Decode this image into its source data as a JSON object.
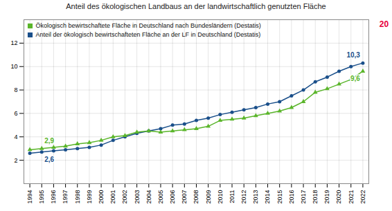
{
  "chart_data": {
    "type": "line",
    "title": "Anteil des ökologischen Landbaus an der landwirtschaftlich genutzten Fläche",
    "x": [
      1994,
      1995,
      1996,
      1997,
      1998,
      1999,
      2000,
      2001,
      2002,
      2003,
      2004,
      2005,
      2006,
      2007,
      2008,
      2009,
      2010,
      2011,
      2012,
      2013,
      2014,
      2015,
      2016,
      2017,
      2018,
      2019,
      2020,
      2021,
      2022
    ],
    "series": [
      {
        "name": "Anteil der ökologisch bewirtschafteten Fläche an der LF in Deutschland (Destatis)",
        "color": "#1a4f8a",
        "marker": "circle",
        "values": [
          2.6,
          2.7,
          2.8,
          2.9,
          3.0,
          3.1,
          3.3,
          3.7,
          4.0,
          4.3,
          4.5,
          4.7,
          5.0,
          5.1,
          5.4,
          5.6,
          5.9,
          6.1,
          6.3,
          6.5,
          6.8,
          7.0,
          7.5,
          8.0,
          8.7,
          9.1,
          9.6,
          10.0,
          10.3
        ]
      },
      {
        "name": "Ökologisch bewirtschaftete Fläche in Deutschland nach Bundesländern (Destatis)",
        "color": "#5ab52a",
        "marker": "triangle",
        "values": [
          2.9,
          3.0,
          3.1,
          3.2,
          3.4,
          3.5,
          3.7,
          4.0,
          4.1,
          4.4,
          4.5,
          4.4,
          4.5,
          4.6,
          4.7,
          4.9,
          5.4,
          5.5,
          5.6,
          5.8,
          6.0,
          6.2,
          6.5,
          7.0,
          7.8,
          8.1,
          8.5,
          8.9,
          9.6
        ]
      }
    ],
    "xlim": [
      1993.5,
      2022.5
    ],
    "xticks": [
      1994,
      1995,
      1996,
      1997,
      1998,
      1999,
      2000,
      2001,
      2002,
      2003,
      2004,
      2005,
      2006,
      2007,
      2008,
      2009,
      2010,
      2011,
      2012,
      2013,
      2014,
      2015,
      2016,
      2017,
      2018,
      2019,
      2020,
      2021,
      2022
    ],
    "ylim": [
      0,
      14
    ],
    "yticks": [
      2,
      4,
      6,
      8,
      10,
      12
    ],
    "grid": true,
    "legend": "upper left",
    "annotations": [
      {
        "text": "2,6",
        "x": 1995,
        "y": 2.7,
        "color": "#1a4f8a"
      },
      {
        "text": "2,9",
        "x": 1995,
        "y": 3.0,
        "color": "#5ab52a"
      },
      {
        "text": "10,3",
        "x": 2022,
        "y": 10.3,
        "color": "#1a4f8a"
      },
      {
        "text": "9,6",
        "x": 2022,
        "y": 9.6,
        "color": "#5ab52a"
      },
      {
        "text": "20",
        "color": "#e8003c"
      }
    ]
  }
}
